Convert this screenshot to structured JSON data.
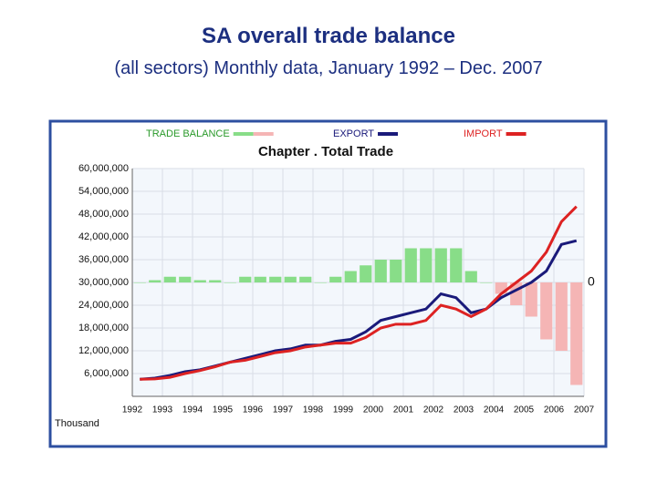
{
  "title": "SA overall trade balance",
  "subtitle": "(all sectors) Monthly data, January 1992 – Dec. 2007",
  "chart_data": {
    "type": "line",
    "title": "Chapter . Total Trade",
    "y_unit_label": "Thousand",
    "x": [
      1992.25,
      1992.75,
      1993.25,
      1993.75,
      1994.25,
      1994.75,
      1995.25,
      1995.75,
      1996.25,
      1996.75,
      1997.25,
      1997.75,
      1998.25,
      1998.75,
      1999.25,
      1999.75,
      2000.25,
      2000.75,
      2001.25,
      2001.75,
      2002.25,
      2002.75,
      2003.25,
      2003.75,
      2004.25,
      2004.75,
      2005.25,
      2005.75,
      2006.25,
      2006.75
    ],
    "series": [
      {
        "name": "TRADE BALANCE",
        "type": "bar",
        "axis": "y2",
        "color": "#88dd88",
        "negative_color": "#f5b5b5",
        "values": [
          0,
          200000,
          500000,
          500000,
          200000,
          200000,
          0,
          500000,
          500000,
          500000,
          500000,
          500000,
          0,
          500000,
          1000000,
          1500000,
          2000000,
          2000000,
          3000000,
          3000000,
          3000000,
          3000000,
          1000000,
          0,
          -1000000,
          -2000000,
          -3000000,
          -5000000,
          -6000000,
          -9000000
        ]
      },
      {
        "name": "EXPORT",
        "type": "line",
        "color": "#1a1a7a",
        "values": [
          4500000,
          4800000,
          5500000,
          6500000,
          7000000,
          8000000,
          9000000,
          10000000,
          11000000,
          12000000,
          12500000,
          13500000,
          13500000,
          14500000,
          15000000,
          17000000,
          20000000,
          21000000,
          22000000,
          23000000,
          27000000,
          26000000,
          22000000,
          23000000,
          26000000,
          28000000,
          30000000,
          33000000,
          40000000,
          41000000
        ]
      },
      {
        "name": "IMPORT",
        "type": "line",
        "color": "#dd2222",
        "values": [
          4500000,
          4600000,
          5000000,
          6000000,
          6800000,
          7800000,
          9000000,
          9500000,
          10500000,
          11500000,
          12000000,
          13000000,
          13500000,
          14000000,
          14000000,
          15500000,
          18000000,
          19000000,
          19000000,
          20000000,
          24000000,
          23000000,
          21000000,
          23000000,
          27000000,
          30000000,
          33000000,
          38000000,
          46000000,
          50000000
        ]
      }
    ],
    "xlim": [
      1992,
      2007
    ],
    "xticks": [
      1992,
      1993,
      1994,
      1995,
      1996,
      1997,
      1998,
      1999,
      2000,
      2001,
      2002,
      2003,
      2004,
      2005,
      2006,
      2007
    ],
    "ylim": [
      0,
      60000000
    ],
    "yticks": [
      {
        "value": 6000000,
        "label": "6,000,000"
      },
      {
        "value": 12000000,
        "label": "12,000,000"
      },
      {
        "value": 18000000,
        "label": "18,000,000"
      },
      {
        "value": 24000000,
        "label": "24,000,000"
      },
      {
        "value": 30000000,
        "label": "30,000,000"
      },
      {
        "value": 36000000,
        "label": "36,000,000"
      },
      {
        "value": 42000000,
        "label": "42,000,000"
      },
      {
        "value": 48000000,
        "label": "48,000,000"
      },
      {
        "value": 54000000,
        "label": "54,000,000"
      },
      {
        "value": 60000000,
        "label": "60,000,000"
      }
    ],
    "y2lim": [
      -10000000,
      10000000
    ],
    "y2ticks": [
      0
    ],
    "grid": true
  }
}
